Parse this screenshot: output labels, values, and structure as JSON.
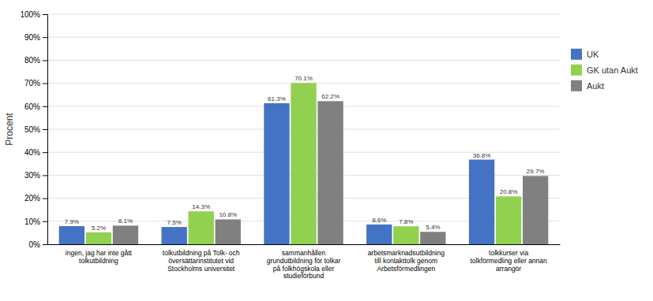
{
  "chart_data": {
    "type": "bar",
    "ylabel": "Procent",
    "categories": [
      "ingen, jag har inte gått\ntolkutbildning",
      "tolkutbildning på Tolk- och\növersättarinstitutet vid\nStockholms universitet",
      "sammanhållen\ngrundutbildning för tolkar\npå folkhögskola eller\nstudieförbund",
      "arbetsmarknadsutbildning\ntill kontakttolk genom\nArbetsförmedlingen",
      "tolkkurser via\ntolkförmedling eller annan\narrangör"
    ],
    "series": [
      {
        "name": "UK",
        "color": "#4472c4",
        "values": [
          7.9,
          7.5,
          61.3,
          8.6,
          36.8
        ],
        "value_labels": [
          "7.9%",
          "7.5%",
          "61.3%",
          "8.6%",
          "36.8%"
        ]
      },
      {
        "name": "GK utan Aukt",
        "color": "#92d050",
        "values": [
          5.2,
          14.3,
          70.1,
          7.8,
          20.8
        ],
        "value_labels": [
          "5.2%",
          "14.3%",
          "70.1%",
          "7.8%",
          "20.8%"
        ]
      },
      {
        "name": "Aukt",
        "color": "#808080",
        "values": [
          8.1,
          10.8,
          62.2,
          5.4,
          29.7
        ],
        "value_labels": [
          "8.1%",
          "10.8%",
          "62.2%",
          "5.4%",
          "29.7%"
        ]
      }
    ],
    "ylim": [
      0,
      100
    ],
    "yticks": [
      {
        "value": 0,
        "label": "0%"
      },
      {
        "value": 10,
        "label": "10%"
      },
      {
        "value": 20,
        "label": "20%"
      },
      {
        "value": 30,
        "label": "30%"
      },
      {
        "value": 40,
        "label": "40%"
      },
      {
        "value": 50,
        "label": "50%"
      },
      {
        "value": 60,
        "label": "60%"
      },
      {
        "value": 70,
        "label": "70%"
      },
      {
        "value": 80,
        "label": "80%"
      },
      {
        "value": 90,
        "label": "90%"
      },
      {
        "value": 100,
        "label": "100%"
      }
    ],
    "grid": true,
    "legend": "right",
    "data_labels": true
  }
}
